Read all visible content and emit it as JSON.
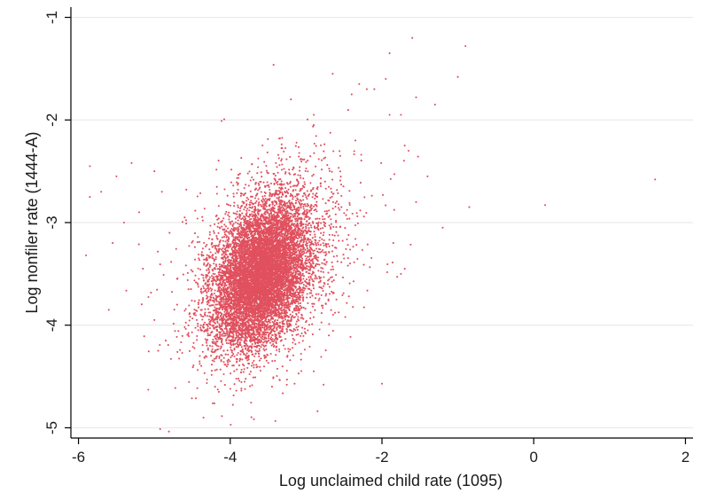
{
  "chart_data": {
    "type": "scatter",
    "title": "",
    "xlabel": "Log unclaimed child rate (1095)",
    "ylabel": "Log nonfiler rate (1444-A)",
    "xlim": [
      -6.1,
      2.1
    ],
    "ylim": [
      -5.1,
      -0.9
    ],
    "x_ticks": [
      -6,
      -4,
      -2,
      0,
      2
    ],
    "y_ticks": [
      -5,
      -4,
      -3,
      -2,
      -1
    ],
    "grid": true,
    "marker_color": "#e0505e",
    "cluster": {
      "center_x": -3.6,
      "center_y": -3.5,
      "sd_x": 0.32,
      "sd_y": 0.36,
      "correlation": 0.35,
      "approx_points": 9000
    },
    "points": [
      [
        -1.6,
        -1.2
      ],
      [
        -0.9,
        -1.28
      ],
      [
        -1.9,
        -1.35
      ],
      [
        -1.0,
        -1.58
      ],
      [
        -2.65,
        -1.55
      ],
      [
        -2.3,
        -1.65
      ],
      [
        -1.95,
        -1.6
      ],
      [
        -1.55,
        -1.78
      ],
      [
        -1.3,
        -1.85
      ],
      [
        -2.2,
        -1.7
      ],
      [
        -2.4,
        -1.75
      ],
      [
        -3.2,
        -1.8
      ],
      [
        -2.9,
        -1.95
      ],
      [
        -1.9,
        -1.95
      ],
      [
        -1.75,
        -1.95
      ],
      [
        -1.7,
        -2.25
      ],
      [
        -1.65,
        -2.3
      ],
      [
        -2.1,
        -1.7
      ],
      [
        1.6,
        -2.58
      ],
      [
        0.15,
        -2.83
      ],
      [
        -0.85,
        -2.85
      ],
      [
        -1.2,
        -3.05
      ],
      [
        -5.85,
        -2.45
      ],
      [
        -5.5,
        -2.55
      ],
      [
        -5.3,
        -2.42
      ],
      [
        -5.85,
        -2.75
      ],
      [
        -5.7,
        -2.7
      ],
      [
        -5.9,
        -3.32
      ],
      [
        -5.55,
        -3.2
      ],
      [
        -5.0,
        -2.5
      ],
      [
        -4.9,
        -2.7
      ],
      [
        -5.2,
        -2.9
      ],
      [
        -5.4,
        -3.0
      ],
      [
        -5.15,
        -3.45
      ],
      [
        -5.6,
        -3.85
      ],
      [
        -5.0,
        -3.95
      ],
      [
        -4.85,
        -4.15
      ],
      [
        -4.95,
        -4.25
      ],
      [
        -4.7,
        -3.8
      ],
      [
        -4.4,
        -4.3
      ],
      [
        -4.2,
        -4.6
      ],
      [
        -4.15,
        -4.65
      ],
      [
        -4.0,
        -4.62
      ],
      [
        -3.45,
        -4.6
      ],
      [
        -2.9,
        -4.45
      ],
      [
        -2.0,
        -4.57
      ],
      [
        -1.75,
        -3.5
      ],
      [
        -1.7,
        -3.45
      ],
      [
        -1.85,
        -3.2
      ],
      [
        -1.55,
        -2.8
      ],
      [
        -1.4,
        -2.55
      ],
      [
        -2.5,
        -3.35
      ],
      [
        -2.6,
        -3.75
      ],
      [
        -2.7,
        -4.1
      ],
      [
        -2.55,
        -2.35
      ],
      [
        -2.35,
        -2.2
      ],
      [
        -4.6,
        -2.95
      ],
      [
        -4.8,
        -3.1
      ],
      [
        -4.7,
        -3.55
      ],
      [
        -4.55,
        -3.65
      ]
    ]
  }
}
